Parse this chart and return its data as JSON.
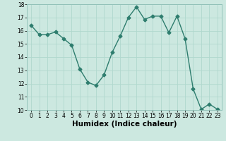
{
  "x": [
    0,
    1,
    2,
    3,
    4,
    5,
    6,
    7,
    8,
    9,
    10,
    11,
    12,
    13,
    14,
    15,
    16,
    17,
    18,
    19,
    20,
    21,
    22,
    23
  ],
  "y": [
    16.4,
    15.7,
    15.7,
    15.9,
    15.4,
    14.9,
    13.1,
    12.1,
    11.85,
    12.65,
    14.35,
    15.6,
    17.0,
    17.8,
    16.85,
    17.1,
    17.1,
    15.85,
    17.1,
    15.4,
    11.6,
    10.05,
    10.45,
    10.05
  ],
  "line_color": "#2e7d6e",
  "marker": "D",
  "marker_size": 2.5,
  "bg_color": "#cce8e0",
  "grid_color": "#b0d8ce",
  "xlabel": "Humidex (Indice chaleur)",
  "ylim": [
    10,
    18
  ],
  "xlim": [
    -0.5,
    23.5
  ],
  "yticks": [
    10,
    11,
    12,
    13,
    14,
    15,
    16,
    17,
    18
  ],
  "xticks": [
    0,
    1,
    2,
    3,
    4,
    5,
    6,
    7,
    8,
    9,
    10,
    11,
    12,
    13,
    14,
    15,
    16,
    17,
    18,
    19,
    20,
    21,
    22,
    23
  ],
  "tick_fontsize": 5.5,
  "xlabel_fontsize": 7.5,
  "line_width": 1.0
}
